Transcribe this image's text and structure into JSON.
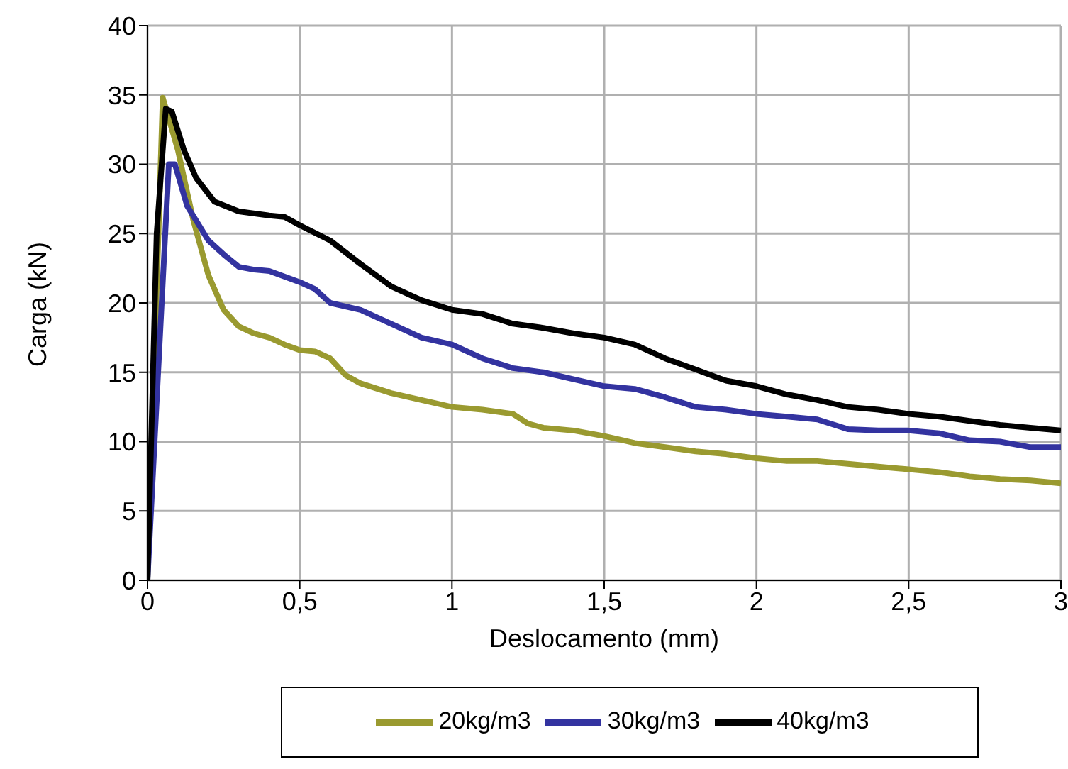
{
  "chart_data": {
    "type": "line",
    "xlabel": "Deslocamento (mm)",
    "ylabel": "Carga (kN)",
    "xlim": [
      0,
      3
    ],
    "ylim": [
      0,
      40
    ],
    "xticks": [
      0,
      {
        "value": 0.5,
        "label": "0,5"
      },
      1,
      {
        "value": 1.5,
        "label": "1,5"
      },
      2,
      {
        "value": 2.5,
        "label": "2,5"
      },
      3
    ],
    "yticks": [
      0,
      5,
      10,
      15,
      20,
      25,
      30,
      35,
      40
    ],
    "grid": true,
    "legend": "bottom",
    "marker": "none",
    "line_style": "solid",
    "series": [
      {
        "name": "20kg/m3",
        "color": "#9a9a30",
        "x": [
          0,
          0.05,
          0.1,
          0.15,
          0.2,
          0.25,
          0.3,
          0.35,
          0.4,
          0.45,
          0.5,
          0.55,
          0.6,
          0.65,
          0.7,
          0.8,
          0.9,
          1.0,
          1.1,
          1.2,
          1.25,
          1.3,
          1.4,
          1.5,
          1.6,
          1.7,
          1.8,
          1.9,
          2.0,
          2.1,
          2.2,
          2.3,
          2.4,
          2.5,
          2.6,
          2.7,
          2.8,
          2.9,
          3.0
        ],
        "values": [
          0,
          34.8,
          31,
          26,
          22,
          19.5,
          18.3,
          17.8,
          17.5,
          17,
          16.6,
          16.5,
          16,
          14.8,
          14.2,
          13.5,
          13,
          12.5,
          12.3,
          12,
          11.3,
          11,
          10.8,
          10.4,
          9.9,
          9.6,
          9.3,
          9.1,
          8.8,
          8.6,
          8.6,
          8.4,
          8.2,
          8,
          7.8,
          7.5,
          7.3,
          7.2,
          7.0
        ]
      },
      {
        "name": "30kg/m3",
        "color": "#3333a0",
        "x": [
          0,
          0.07,
          0.09,
          0.13,
          0.2,
          0.25,
          0.3,
          0.35,
          0.4,
          0.5,
          0.55,
          0.6,
          0.7,
          0.8,
          0.9,
          1.0,
          1.1,
          1.2,
          1.3,
          1.4,
          1.5,
          1.6,
          1.7,
          1.8,
          1.9,
          2.0,
          2.1,
          2.2,
          2.3,
          2.4,
          2.5,
          2.6,
          2.7,
          2.8,
          2.9,
          3.0
        ],
        "values": [
          0,
          30,
          30,
          27,
          24.5,
          23.5,
          22.6,
          22.4,
          22.3,
          21.5,
          21,
          20,
          19.5,
          18.5,
          17.5,
          17,
          16,
          15.3,
          15,
          14.5,
          14,
          13.8,
          13.2,
          12.5,
          12.3,
          12,
          11.8,
          11.6,
          10.9,
          10.8,
          10.8,
          10.6,
          10.1,
          10,
          9.6,
          9.6
        ]
      },
      {
        "name": "40kg/m3",
        "color": "#000000",
        "x": [
          0,
          0.03,
          0.06,
          0.08,
          0.12,
          0.16,
          0.22,
          0.3,
          0.4,
          0.45,
          0.5,
          0.6,
          0.7,
          0.8,
          0.9,
          1.0,
          1.1,
          1.2,
          1.3,
          1.4,
          1.5,
          1.6,
          1.7,
          1.8,
          1.9,
          2.0,
          2.1,
          2.2,
          2.3,
          2.4,
          2.5,
          2.6,
          2.7,
          2.8,
          2.9,
          3.0
        ],
        "values": [
          0,
          25,
          34,
          33.8,
          31,
          29,
          27.3,
          26.6,
          26.3,
          26.2,
          25.6,
          24.5,
          22.8,
          21.2,
          20.2,
          19.5,
          19.2,
          18.5,
          18.2,
          17.8,
          17.5,
          17,
          16,
          15.2,
          14.4,
          14,
          13.4,
          13,
          12.5,
          12.3,
          12,
          11.8,
          11.5,
          11.2,
          11,
          10.8
        ]
      }
    ]
  }
}
